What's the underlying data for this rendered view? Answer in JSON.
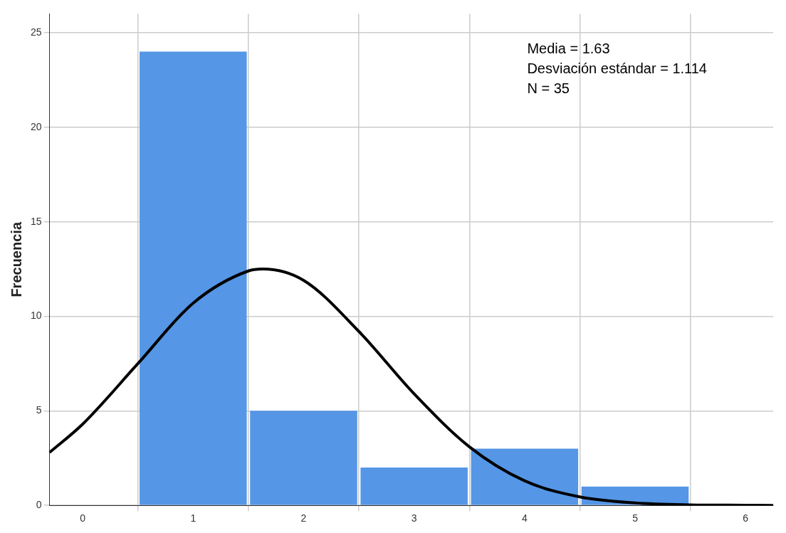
{
  "chart_data": {
    "type": "histogram",
    "ylabel": "Frecuencia",
    "bins": [
      0.5,
      1.5,
      2.5,
      3.5,
      4.5,
      5.5
    ],
    "values": [
      24,
      5,
      2,
      3,
      1
    ],
    "color": "#5596e6",
    "series": [
      {
        "type": "line",
        "color": "#000000",
        "x": [
          -0.3,
          0,
          0.5,
          1,
          1.5,
          1.63,
          2,
          2.5,
          3,
          3.5,
          4,
          4.5,
          5,
          5.5,
          6,
          6.25
        ],
        "values": [
          2.8,
          4.3,
          7.5,
          10.7,
          12.4,
          12.5,
          11.9,
          9.2,
          5.9,
          3.1,
          1.3,
          0.45,
          0.13,
          0.03,
          0.01,
          0
        ]
      }
    ],
    "xlim": [
      -0.3,
      6.25
    ],
    "xticks": [
      0,
      1,
      2,
      3,
      4,
      5,
      6
    ],
    "ylim": [
      0,
      26
    ],
    "yticks": [
      0,
      5,
      10,
      15,
      20,
      25
    ],
    "grid": true,
    "legend": false,
    "annotations": [
      "Media = 1.63",
      "Desviación estándar = 1.114",
      "N = 35"
    ]
  }
}
